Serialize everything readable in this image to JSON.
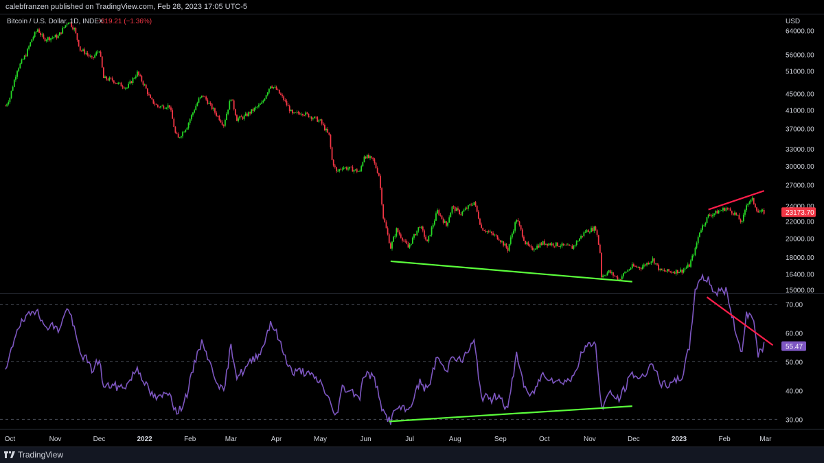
{
  "header": {
    "published_text": "calebfranzen published on TradingView.com, Feb 28, 2023 17:05 UTC-5"
  },
  "legend": {
    "symbol": "Bitcoin / U.S. Dollar, 1D, INDEX",
    "change": "−319.21 (−1.36%)",
    "change_color": "#f23645"
  },
  "footer": {
    "brand": "TradingView"
  },
  "colors": {
    "up": "#26d926",
    "down": "#f23645",
    "rsi_line": "#7e57c2",
    "green_trend": "#5bff3b",
    "red_trend": "#ff1e4b",
    "grid_dash": "#4a4e59",
    "axis_text": "#d1d4dc"
  },
  "chart_data": [
    {
      "type": "candlestick",
      "title": "Bitcoin / U.S. Dollar, 1D, INDEX",
      "y_axis_unit": "USD",
      "y_scale": "log",
      "ylim": [
        14800,
        69000
      ],
      "y_ticks": [
        15000,
        16400,
        18000,
        20000,
        22000,
        24000,
        27000,
        30000,
        33000,
        37000,
        41000,
        45000,
        51000,
        56000,
        64000
      ],
      "y_tick_labels": [
        "15000.00",
        "16400.00",
        "18000.00",
        "20000.00",
        "22000.00",
        "24000.00",
        "27000.00",
        "30000.00",
        "33000.00",
        "37000.00",
        "41000.00",
        "45000.00",
        "51000.00",
        "56000.00",
        "64000.00"
      ],
      "last_price": 23173.7,
      "last_price_label": "23173.70",
      "x_range": [
        "2021-09-28",
        "2023-03-10"
      ],
      "x_ticks": [
        {
          "date": "2021-10-01",
          "label": "Oct"
        },
        {
          "date": "2021-11-01",
          "label": "Nov"
        },
        {
          "date": "2021-12-01",
          "label": "Dec"
        },
        {
          "date": "2022-01-01",
          "label": "2022"
        },
        {
          "date": "2022-02-01",
          "label": "Feb"
        },
        {
          "date": "2022-03-01",
          "label": "Mar"
        },
        {
          "date": "2022-04-01",
          "label": "Apr"
        },
        {
          "date": "2022-05-01",
          "label": "May"
        },
        {
          "date": "2022-06-01",
          "label": "Jun"
        },
        {
          "date": "2022-07-01",
          "label": "Jul"
        },
        {
          "date": "2022-08-01",
          "label": "Aug"
        },
        {
          "date": "2022-09-01",
          "label": "Sep"
        },
        {
          "date": "2022-10-01",
          "label": "Oct"
        },
        {
          "date": "2022-11-01",
          "label": "Nov"
        },
        {
          "date": "2022-12-01",
          "label": "Dec"
        },
        {
          "date": "2023-01-01",
          "label": "2023"
        },
        {
          "date": "2023-02-01",
          "label": "Feb"
        },
        {
          "date": "2023-03-01",
          "label": "Mar"
        }
      ],
      "price_path": [
        [
          "2021-09-28",
          42000
        ],
        [
          "2021-10-01",
          44000
        ],
        [
          "2021-10-06",
          51500
        ],
        [
          "2021-10-12",
          56000
        ],
        [
          "2021-10-16",
          61000
        ],
        [
          "2021-10-20",
          64500
        ],
        [
          "2021-10-24",
          61000
        ],
        [
          "2021-10-29",
          61500
        ],
        [
          "2021-11-03",
          62000
        ],
        [
          "2021-11-08",
          66000
        ],
        [
          "2021-11-10",
          67500
        ],
        [
          "2021-11-14",
          64500
        ],
        [
          "2021-11-18",
          57500
        ],
        [
          "2021-11-22",
          56500
        ],
        [
          "2021-11-26",
          54500
        ],
        [
          "2021-12-01",
          57500
        ],
        [
          "2021-12-04",
          49000
        ],
        [
          "2021-12-10",
          48500
        ],
        [
          "2021-12-14",
          47500
        ],
        [
          "2021-12-20",
          46500
        ],
        [
          "2021-12-27",
          50500
        ],
        [
          "2022-01-01",
          47000
        ],
        [
          "2022-01-05",
          43500
        ],
        [
          "2022-01-10",
          41800
        ],
        [
          "2022-01-18",
          42000
        ],
        [
          "2022-01-22",
          36000
        ],
        [
          "2022-01-24",
          35000
        ],
        [
          "2022-01-30",
          37500
        ],
        [
          "2022-02-07",
          43500
        ],
        [
          "2022-02-10",
          44500
        ],
        [
          "2022-02-14",
          42500
        ],
        [
          "2022-02-18",
          40500
        ],
        [
          "2022-02-24",
          37800
        ],
        [
          "2022-03-01",
          44000
        ],
        [
          "2022-03-05",
          39000
        ],
        [
          "2022-03-10",
          39500
        ],
        [
          "2022-03-16",
          41000
        ],
        [
          "2022-03-22",
          42500
        ],
        [
          "2022-03-28",
          47200
        ],
        [
          "2022-04-01",
          46000
        ],
        [
          "2022-04-06",
          43500
        ],
        [
          "2022-04-12",
          40000
        ],
        [
          "2022-04-18",
          40500
        ],
        [
          "2022-04-25",
          39500
        ],
        [
          "2022-05-01",
          38500
        ],
        [
          "2022-05-07",
          35500
        ],
        [
          "2022-05-09",
          31000
        ],
        [
          "2022-05-12",
          29000
        ],
        [
          "2022-05-16",
          29800
        ],
        [
          "2022-05-22",
          29500
        ],
        [
          "2022-05-28",
          29000
        ],
        [
          "2022-05-31",
          31800
        ],
        [
          "2022-06-06",
          31000
        ],
        [
          "2022-06-10",
          28500
        ],
        [
          "2022-06-13",
          22500
        ],
        [
          "2022-06-18",
          19000
        ],
        [
          "2022-06-22",
          21000
        ],
        [
          "2022-06-30",
          19000
        ],
        [
          "2022-07-08",
          21500
        ],
        [
          "2022-07-13",
          19500
        ],
        [
          "2022-07-20",
          23300
        ],
        [
          "2022-07-26",
          21500
        ],
        [
          "2022-07-30",
          23800
        ],
        [
          "2022-08-05",
          23000
        ],
        [
          "2022-08-14",
          24500
        ],
        [
          "2022-08-19",
          21200
        ],
        [
          "2022-08-26",
          20500
        ],
        [
          "2022-08-31",
          20000
        ],
        [
          "2022-09-06",
          18800
        ],
        [
          "2022-09-12",
          22300
        ],
        [
          "2022-09-18",
          19500
        ],
        [
          "2022-09-22",
          18800
        ],
        [
          "2022-09-30",
          19500
        ],
        [
          "2022-10-10",
          19300
        ],
        [
          "2022-10-20",
          19000
        ],
        [
          "2022-10-25",
          20000
        ],
        [
          "2022-10-29",
          20800
        ],
        [
          "2022-11-05",
          21200
        ],
        [
          "2022-11-08",
          18500
        ],
        [
          "2022-11-09",
          16200
        ],
        [
          "2022-11-14",
          16600
        ],
        [
          "2022-11-21",
          15900
        ],
        [
          "2022-11-25",
          16500
        ],
        [
          "2022-11-30",
          17100
        ],
        [
          "2022-12-06",
          17000
        ],
        [
          "2022-12-14",
          17800
        ],
        [
          "2022-12-19",
          16700
        ],
        [
          "2022-12-27",
          16600
        ],
        [
          "2023-01-03",
          16700
        ],
        [
          "2023-01-08",
          17200
        ],
        [
          "2023-01-12",
          18800
        ],
        [
          "2023-01-15",
          20800
        ],
        [
          "2023-01-21",
          22700
        ],
        [
          "2023-01-25",
          23000
        ],
        [
          "2023-02-02",
          23700
        ],
        [
          "2023-02-08",
          23000
        ],
        [
          "2023-02-13",
          21800
        ],
        [
          "2023-02-16",
          24300
        ],
        [
          "2023-02-20",
          24800
        ],
        [
          "2023-02-24",
          23200
        ],
        [
          "2023-02-28",
          23170
        ]
      ],
      "trendlines": [
        {
          "name": "support",
          "color": "#5bff3b",
          "points": [
            [
              "2022-06-18",
              17600
            ],
            [
              "2022-11-30",
              15700
            ]
          ]
        },
        {
          "name": "resistance",
          "color": "#ff1e4b",
          "points": [
            [
              "2023-01-21",
              23500
            ],
            [
              "2023-02-28",
              26100
            ]
          ]
        }
      ]
    },
    {
      "type": "line",
      "indicator": "RSI",
      "ylim": [
        27,
        73.5
      ],
      "y_ticks": [
        30,
        40,
        50,
        60,
        70
      ],
      "y_tick_labels": [
        "30.00",
        "40.00",
        "50.00",
        "60.00",
        "70.00"
      ],
      "bands": [
        30,
        50,
        70
      ],
      "last_value": 55.47,
      "last_value_label": "55.47",
      "series": [
        [
          "2021-09-28",
          46
        ],
        [
          "2021-10-01",
          52
        ],
        [
          "2021-10-06",
          62
        ],
        [
          "2021-10-12",
          65
        ],
        [
          "2021-10-16",
          67
        ],
        [
          "2021-10-20",
          69
        ],
        [
          "2021-10-24",
          62
        ],
        [
          "2021-10-29",
          63
        ],
        [
          "2021-11-03",
          61
        ],
        [
          "2021-11-08",
          67
        ],
        [
          "2021-11-10",
          69
        ],
        [
          "2021-11-14",
          61
        ],
        [
          "2021-11-18",
          53
        ],
        [
          "2021-11-22",
          51
        ],
        [
          "2021-11-26",
          47
        ],
        [
          "2021-12-01",
          51
        ],
        [
          "2021-12-04",
          41
        ],
        [
          "2021-12-10",
          42
        ],
        [
          "2021-12-14",
          41
        ],
        [
          "2021-12-20",
          42
        ],
        [
          "2021-12-27",
          48
        ],
        [
          "2022-01-01",
          43
        ],
        [
          "2022-01-05",
          39
        ],
        [
          "2022-01-10",
          37
        ],
        [
          "2022-01-18",
          40
        ],
        [
          "2022-01-22",
          33
        ],
        [
          "2022-01-24",
          32
        ],
        [
          "2022-01-30",
          39
        ],
        [
          "2022-02-07",
          55
        ],
        [
          "2022-02-10",
          57
        ],
        [
          "2022-02-14",
          50
        ],
        [
          "2022-02-18",
          45
        ],
        [
          "2022-02-24",
          39
        ],
        [
          "2022-03-01",
          56
        ],
        [
          "2022-03-05",
          45
        ],
        [
          "2022-03-10",
          47
        ],
        [
          "2022-03-16",
          51
        ],
        [
          "2022-03-22",
          54
        ],
        [
          "2022-03-28",
          64
        ],
        [
          "2022-04-01",
          60
        ],
        [
          "2022-04-06",
          53
        ],
        [
          "2022-04-12",
          46
        ],
        [
          "2022-04-18",
          47
        ],
        [
          "2022-04-25",
          45
        ],
        [
          "2022-05-01",
          43
        ],
        [
          "2022-05-07",
          37
        ],
        [
          "2022-05-09",
          33
        ],
        [
          "2022-05-12",
          31.5
        ],
        [
          "2022-05-16",
          41
        ],
        [
          "2022-05-22",
          40
        ],
        [
          "2022-05-28",
          38
        ],
        [
          "2022-05-31",
          46
        ],
        [
          "2022-06-06",
          45
        ],
        [
          "2022-06-10",
          39
        ],
        [
          "2022-06-13",
          32
        ],
        [
          "2022-06-18",
          29.5
        ],
        [
          "2022-06-22",
          34
        ],
        [
          "2022-06-30",
          33
        ],
        [
          "2022-07-08",
          43
        ],
        [
          "2022-07-13",
          40
        ],
        [
          "2022-07-20",
          52
        ],
        [
          "2022-07-26",
          46
        ],
        [
          "2022-07-30",
          53
        ],
        [
          "2022-08-05",
          50
        ],
        [
          "2022-08-14",
          57
        ],
        [
          "2022-08-19",
          38
        ],
        [
          "2022-08-26",
          37
        ],
        [
          "2022-08-31",
          39
        ],
        [
          "2022-09-06",
          33
        ],
        [
          "2022-09-12",
          53
        ],
        [
          "2022-09-18",
          40
        ],
        [
          "2022-09-22",
          38
        ],
        [
          "2022-09-30",
          46
        ],
        [
          "2022-10-10",
          43
        ],
        [
          "2022-10-20",
          44
        ],
        [
          "2022-10-25",
          51
        ],
        [
          "2022-10-29",
          55
        ],
        [
          "2022-11-05",
          57
        ],
        [
          "2022-11-08",
          38
        ],
        [
          "2022-11-09",
          34
        ],
        [
          "2022-11-14",
          39
        ],
        [
          "2022-11-21",
          37
        ],
        [
          "2022-11-25",
          41
        ],
        [
          "2022-11-30",
          46
        ],
        [
          "2022-12-06",
          44
        ],
        [
          "2022-12-14",
          50
        ],
        [
          "2022-12-19",
          42
        ],
        [
          "2022-12-27",
          42
        ],
        [
          "2023-01-03",
          45
        ],
        [
          "2023-01-08",
          55
        ],
        [
          "2023-01-12",
          75
        ],
        [
          "2023-01-15",
          79
        ],
        [
          "2023-01-21",
          79
        ],
        [
          "2023-01-25",
          74
        ],
        [
          "2023-02-02",
          75
        ],
        [
          "2023-02-08",
          62
        ],
        [
          "2023-02-13",
          53
        ],
        [
          "2023-02-16",
          67
        ],
        [
          "2023-02-20",
          66
        ],
        [
          "2023-02-24",
          53
        ],
        [
          "2023-02-28",
          55.47
        ]
      ],
      "trendlines": [
        {
          "name": "rsi-support",
          "color": "#5bff3b",
          "points": [
            [
              "2022-06-17",
              29.3
            ],
            [
              "2022-11-30",
              34.6
            ]
          ]
        },
        {
          "name": "rsi-resistance",
          "color": "#ff1e4b",
          "points": [
            [
              "2023-01-20",
              72.5
            ],
            [
              "2023-03-06",
              55.8
            ]
          ]
        }
      ]
    }
  ]
}
